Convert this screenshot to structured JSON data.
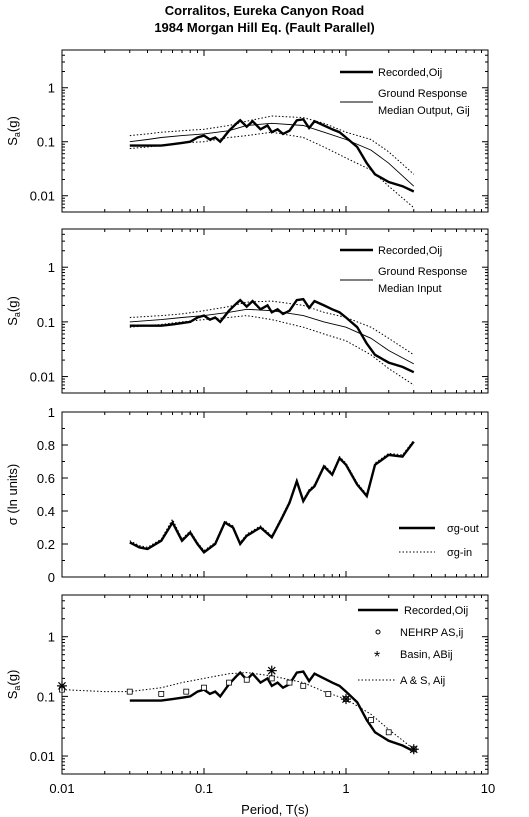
{
  "title_line1": "Corralitos, Eureka Canyon Road",
  "title_line2": "1984 Morgan Hill Eq. (Fault Parallel)",
  "xlabel": "Period, T(s)",
  "x_ticks": [
    "0.01",
    "0.1",
    "1",
    "10"
  ],
  "chart_data": [
    {
      "type": "line",
      "ylabel": "Sa(g)",
      "xlim": [
        0.01,
        10
      ],
      "ylim": [
        0.005,
        5
      ],
      "yscale": "log",
      "xscale": "log",
      "y_ticks": [
        "1",
        "0.1",
        "0.01"
      ],
      "legend": [
        "Recorded,Oij",
        "Ground Response",
        "Median Output, Gij"
      ],
      "series": [
        {
          "name": "Recorded,Oij",
          "style": "thick",
          "x": [
            0.03,
            0.04,
            0.05,
            0.06,
            0.07,
            0.08,
            0.09,
            0.1,
            0.11,
            0.12,
            0.13,
            0.15,
            0.17,
            0.18,
            0.2,
            0.22,
            0.25,
            0.28,
            0.3,
            0.33,
            0.36,
            0.4,
            0.45,
            0.5,
            0.55,
            0.6,
            0.7,
            0.8,
            0.9,
            1.0,
            1.2,
            1.4,
            1.6,
            2.0,
            2.5,
            3.0
          ],
          "y": [
            0.085,
            0.085,
            0.085,
            0.09,
            0.095,
            0.1,
            0.12,
            0.13,
            0.11,
            0.12,
            0.1,
            0.16,
            0.22,
            0.25,
            0.19,
            0.24,
            0.17,
            0.2,
            0.15,
            0.17,
            0.14,
            0.16,
            0.25,
            0.26,
            0.18,
            0.24,
            0.2,
            0.17,
            0.15,
            0.12,
            0.08,
            0.04,
            0.025,
            0.018,
            0.015,
            0.012
          ]
        },
        {
          "name": "Median Output",
          "style": "thin",
          "x": [
            0.03,
            0.04,
            0.05,
            0.07,
            0.1,
            0.15,
            0.2,
            0.3,
            0.5,
            0.7,
            1.0,
            1.5,
            2.0,
            3.0
          ],
          "y": [
            0.1,
            0.11,
            0.12,
            0.13,
            0.14,
            0.16,
            0.2,
            0.22,
            0.2,
            0.15,
            0.11,
            0.07,
            0.04,
            0.015
          ]
        },
        {
          "name": "Upper band",
          "style": "dotted",
          "x": [
            0.03,
            0.04,
            0.05,
            0.07,
            0.1,
            0.15,
            0.2,
            0.3,
            0.5,
            0.7,
            1.0,
            1.5,
            2.0,
            3.0
          ],
          "y": [
            0.13,
            0.14,
            0.15,
            0.16,
            0.17,
            0.2,
            0.24,
            0.3,
            0.28,
            0.22,
            0.15,
            0.11,
            0.065,
            0.025
          ]
        },
        {
          "name": "Lower band",
          "style": "dotted",
          "x": [
            0.03,
            0.04,
            0.05,
            0.07,
            0.1,
            0.15,
            0.2,
            0.3,
            0.5,
            0.7,
            1.0,
            1.5,
            2.0,
            3.0
          ],
          "y": [
            0.075,
            0.08,
            0.085,
            0.095,
            0.1,
            0.12,
            0.13,
            0.15,
            0.12,
            0.08,
            0.05,
            0.03,
            0.015,
            0.006
          ]
        }
      ]
    },
    {
      "type": "line",
      "ylabel": "Sa(g)",
      "xlim": [
        0.01,
        10
      ],
      "ylim": [
        0.005,
        5
      ],
      "yscale": "log",
      "xscale": "log",
      "y_ticks": [
        "1",
        "0.1",
        "0.01"
      ],
      "legend": [
        "Recorded,Oij",
        "Ground Response",
        "Median Input"
      ],
      "series": [
        {
          "name": "Recorded,Oij",
          "style": "thick",
          "x": [
            0.03,
            0.04,
            0.05,
            0.06,
            0.07,
            0.08,
            0.09,
            0.1,
            0.11,
            0.12,
            0.13,
            0.15,
            0.17,
            0.18,
            0.2,
            0.22,
            0.25,
            0.28,
            0.3,
            0.33,
            0.36,
            0.4,
            0.45,
            0.5,
            0.55,
            0.6,
            0.7,
            0.8,
            0.9,
            1.0,
            1.2,
            1.4,
            1.6,
            2.0,
            2.5,
            3.0
          ],
          "y": [
            0.085,
            0.085,
            0.085,
            0.09,
            0.095,
            0.1,
            0.12,
            0.13,
            0.11,
            0.12,
            0.1,
            0.16,
            0.22,
            0.25,
            0.19,
            0.24,
            0.17,
            0.2,
            0.15,
            0.17,
            0.14,
            0.16,
            0.25,
            0.26,
            0.18,
            0.24,
            0.2,
            0.17,
            0.15,
            0.12,
            0.08,
            0.04,
            0.025,
            0.018,
            0.015,
            0.012
          ]
        },
        {
          "name": "Median Input",
          "style": "thin",
          "x": [
            0.03,
            0.05,
            0.07,
            0.1,
            0.15,
            0.2,
            0.3,
            0.5,
            0.7,
            1.0,
            1.5,
            2.0,
            3.0
          ],
          "y": [
            0.1,
            0.11,
            0.12,
            0.13,
            0.15,
            0.17,
            0.16,
            0.13,
            0.1,
            0.08,
            0.05,
            0.03,
            0.017
          ]
        },
        {
          "name": "Upper band",
          "style": "dotted",
          "x": [
            0.03,
            0.05,
            0.07,
            0.1,
            0.15,
            0.2,
            0.3,
            0.5,
            0.7,
            1.0,
            1.5,
            2.0,
            3.0
          ],
          "y": [
            0.12,
            0.13,
            0.14,
            0.16,
            0.19,
            0.23,
            0.24,
            0.2,
            0.15,
            0.12,
            0.08,
            0.05,
            0.025
          ]
        },
        {
          "name": "Lower band",
          "style": "dotted",
          "x": [
            0.03,
            0.05,
            0.07,
            0.1,
            0.15,
            0.2,
            0.3,
            0.5,
            0.7,
            1.0,
            1.5,
            2.0,
            3.0
          ],
          "y": [
            0.08,
            0.09,
            0.1,
            0.11,
            0.12,
            0.13,
            0.11,
            0.08,
            0.06,
            0.045,
            0.025,
            0.014,
            0.007
          ]
        }
      ]
    },
    {
      "type": "line",
      "ylabel": "σ (ln units)",
      "xlim": [
        0.01,
        10
      ],
      "ylim": [
        0,
        1
      ],
      "yscale": "linear",
      "xscale": "log",
      "y_ticks": [
        "1",
        "0.8",
        "0.6",
        "0.4",
        "0.2",
        "0"
      ],
      "legend": [
        "σg-out",
        "σg-in"
      ],
      "series": [
        {
          "name": "σg-out",
          "style": "thick",
          "x": [
            0.03,
            0.035,
            0.04,
            0.05,
            0.06,
            0.07,
            0.08,
            0.09,
            0.1,
            0.12,
            0.14,
            0.16,
            0.18,
            0.2,
            0.25,
            0.3,
            0.35,
            0.4,
            0.45,
            0.5,
            0.55,
            0.6,
            0.7,
            0.8,
            0.9,
            1.0,
            1.2,
            1.4,
            1.6,
            2.0,
            2.5,
            3.0
          ],
          "y": [
            0.21,
            0.18,
            0.17,
            0.22,
            0.33,
            0.22,
            0.27,
            0.2,
            0.15,
            0.2,
            0.33,
            0.3,
            0.2,
            0.25,
            0.3,
            0.24,
            0.35,
            0.45,
            0.58,
            0.46,
            0.52,
            0.55,
            0.67,
            0.62,
            0.72,
            0.68,
            0.56,
            0.49,
            0.68,
            0.74,
            0.73,
            0.82
          ]
        },
        {
          "name": "σg-in",
          "style": "dotted",
          "x": [
            0.03,
            0.035,
            0.04,
            0.05,
            0.06,
            0.07,
            0.08,
            0.09,
            0.1,
            0.12,
            0.14,
            0.16,
            0.18,
            0.2,
            0.25,
            0.3,
            0.35,
            0.4,
            0.45,
            0.5,
            0.55,
            0.6,
            0.7,
            0.8,
            0.9,
            1.0,
            1.2,
            1.4,
            1.6,
            2.0,
            2.5,
            3.0
          ],
          "y": [
            0.22,
            0.19,
            0.18,
            0.23,
            0.35,
            0.23,
            0.28,
            0.21,
            0.16,
            0.21,
            0.34,
            0.31,
            0.21,
            0.26,
            0.31,
            0.25,
            0.36,
            0.46,
            0.59,
            0.47,
            0.53,
            0.56,
            0.68,
            0.63,
            0.73,
            0.69,
            0.57,
            0.5,
            0.69,
            0.75,
            0.74,
            0.83
          ]
        }
      ]
    },
    {
      "type": "line",
      "ylabel": "Sa(g)",
      "xlim": [
        0.01,
        10
      ],
      "ylim": [
        0.005,
        5
      ],
      "yscale": "log",
      "xscale": "log",
      "y_ticks": [
        "1",
        "0.1",
        "0.01"
      ],
      "legend": [
        "Recorded,Oij",
        "NEHRP AS,ij",
        "Basin, ABij",
        "A & S, Aij"
      ],
      "series": [
        {
          "name": "Recorded,Oij",
          "style": "thick",
          "x": [
            0.03,
            0.04,
            0.05,
            0.06,
            0.07,
            0.08,
            0.09,
            0.1,
            0.11,
            0.12,
            0.13,
            0.15,
            0.17,
            0.18,
            0.2,
            0.22,
            0.25,
            0.28,
            0.3,
            0.33,
            0.36,
            0.4,
            0.45,
            0.5,
            0.55,
            0.6,
            0.7,
            0.8,
            0.9,
            1.0,
            1.2,
            1.4,
            1.6,
            2.0,
            2.5,
            3.0
          ],
          "y": [
            0.085,
            0.085,
            0.085,
            0.09,
            0.095,
            0.1,
            0.12,
            0.13,
            0.11,
            0.12,
            0.1,
            0.16,
            0.22,
            0.25,
            0.19,
            0.24,
            0.17,
            0.2,
            0.15,
            0.17,
            0.14,
            0.16,
            0.25,
            0.26,
            0.18,
            0.24,
            0.2,
            0.17,
            0.15,
            0.12,
            0.08,
            0.04,
            0.025,
            0.018,
            0.015,
            0.012
          ]
        },
        {
          "name": "A & S",
          "style": "dotted",
          "x": [
            0.01,
            0.02,
            0.03,
            0.05,
            0.07,
            0.1,
            0.15,
            0.2,
            0.3,
            0.4,
            0.5,
            0.7,
            1.0,
            1.5,
            2.0,
            3.0
          ],
          "y": [
            0.13,
            0.12,
            0.12,
            0.14,
            0.17,
            0.2,
            0.24,
            0.25,
            0.22,
            0.19,
            0.17,
            0.12,
            0.09,
            0.05,
            0.028,
            0.013
          ]
        },
        {
          "name": "NEHRP AS",
          "style": "squares",
          "x": [
            0.01,
            0.03,
            0.05,
            0.075,
            0.1,
            0.15,
            0.2,
            0.3,
            0.4,
            0.5,
            0.75,
            1.0,
            1.5,
            2.0,
            3.0
          ],
          "y": [
            0.13,
            0.12,
            0.11,
            0.12,
            0.14,
            0.17,
            0.19,
            0.2,
            0.17,
            0.15,
            0.11,
            0.09,
            0.04,
            0.025,
            0.013
          ]
        },
        {
          "name": "Basin",
          "style": "stars",
          "x": [
            0.01,
            0.3,
            1.0,
            3.0
          ],
          "y": [
            0.15,
            0.27,
            0.09,
            0.013
          ]
        }
      ]
    }
  ]
}
